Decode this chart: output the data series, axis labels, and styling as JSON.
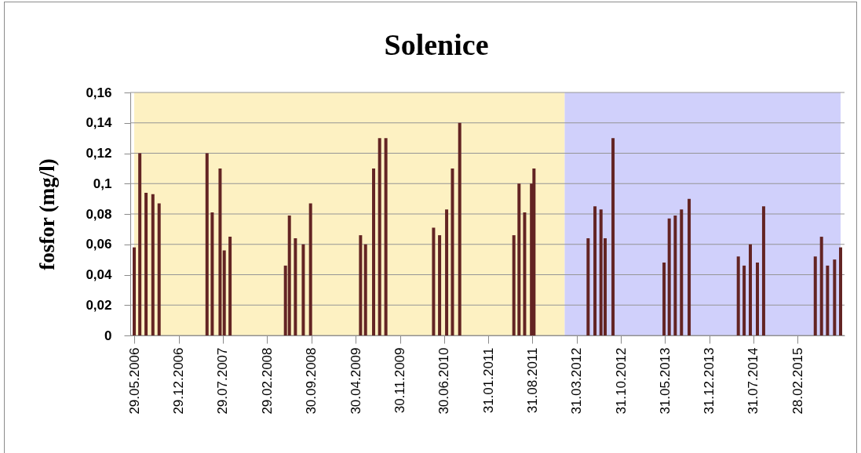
{
  "chart_data": {
    "type": "bar",
    "title": "Solenice",
    "ylabel": "fosfor (mg/l)",
    "x": [
      "2006-05-29",
      "2006-06-25",
      "2006-07-25",
      "2006-08-27",
      "2006-09-26",
      "2007-05-15",
      "2007-06-09",
      "2007-07-17",
      "2007-08-06",
      "2007-09-03",
      "2008-05-27",
      "2008-06-15",
      "2008-07-14",
      "2008-08-21",
      "2008-09-25",
      "2009-05-24",
      "2009-06-17",
      "2009-07-26",
      "2009-08-24",
      "2009-09-23",
      "2010-05-11",
      "2010-06-09",
      "2010-07-13",
      "2010-08-10",
      "2010-09-14",
      "2011-06-02",
      "2011-06-27",
      "2011-07-24",
      "2011-08-26",
      "2011-09-07",
      "2012-05-25",
      "2012-06-27",
      "2012-07-26",
      "2012-08-15",
      "2012-09-22",
      "2013-05-26",
      "2013-06-20",
      "2013-07-19",
      "2013-08-18",
      "2013-09-24",
      "2014-05-19",
      "2014-06-16",
      "2014-07-16",
      "2014-08-19",
      "2014-09-18",
      "2015-05-25",
      "2015-06-24",
      "2015-07-23",
      "2015-08-26",
      "2015-09-24"
    ],
    "values": [
      0.058,
      0.12,
      0.094,
      0.093,
      0.087,
      0.12,
      0.081,
      0.11,
      0.056,
      0.065,
      0.046,
      0.079,
      0.064,
      0.06,
      0.087,
      0.066,
      0.06,
      0.11,
      0.13,
      0.13,
      0.071,
      0.066,
      0.083,
      0.11,
      0.14,
      0.066,
      0.1,
      0.081,
      0.1,
      0.11,
      0.064,
      0.085,
      0.083,
      0.064,
      0.13,
      0.048,
      0.077,
      0.079,
      0.083,
      0.09,
      0.052,
      0.046,
      0.06,
      0.048,
      0.085,
      0.052,
      0.065,
      0.046,
      0.05,
      0.058
    ],
    "color": "#632423",
    "xlim": [
      "2006-05-29",
      "2015-09-24"
    ],
    "xticks": [
      {
        "value": "2006-05-29",
        "label": "29.05.2006"
      },
      {
        "value": "2006-12-29",
        "label": "29.12.2006"
      },
      {
        "value": "2007-07-29",
        "label": "29.07.2007"
      },
      {
        "value": "2008-02-29",
        "label": "29.02.2008"
      },
      {
        "value": "2008-09-30",
        "label": "30.09.2008"
      },
      {
        "value": "2009-04-30",
        "label": "30.04.2009"
      },
      {
        "value": "2009-11-30",
        "label": "30.11.2009"
      },
      {
        "value": "2010-06-30",
        "label": "30.06.2010"
      },
      {
        "value": "2011-01-31",
        "label": "31.01.2011"
      },
      {
        "value": "2011-08-31",
        "label": "31.08.2011"
      },
      {
        "value": "2012-03-31",
        "label": "31.03.2012"
      },
      {
        "value": "2012-10-31",
        "label": "31.10.2012"
      },
      {
        "value": "2013-05-31",
        "label": "31.05.2013"
      },
      {
        "value": "2013-12-31",
        "label": "31.12.2013"
      },
      {
        "value": "2014-07-31",
        "label": "31.07.2014"
      },
      {
        "value": "2015-02-28",
        "label": "28.02.2015"
      }
    ],
    "ylim": [
      0,
      0.16
    ],
    "yticks": [
      0,
      {
        "value": 0.02,
        "label": "0,02"
      },
      {
        "value": 0.04,
        "label": "0,04"
      },
      {
        "value": 0.06,
        "label": "0,06"
      },
      {
        "value": 0.08,
        "label": "0,08"
      },
      {
        "value": 0.1,
        "label": "0,1"
      },
      {
        "value": 0.12,
        "label": "0,12"
      },
      {
        "value": 0.14,
        "label": "0,14"
      },
      {
        "value": 0.16,
        "label": "0,16"
      }
    ],
    "grid": "y",
    "bands": [
      {
        "axis": "x",
        "from": "2006-05-29",
        "to": "2012-02-02",
        "color": "#fdf1c2"
      },
      {
        "axis": "x",
        "from": "2012-02-02",
        "to": "2015-09-24",
        "color": "#d0d0fb"
      }
    ]
  }
}
